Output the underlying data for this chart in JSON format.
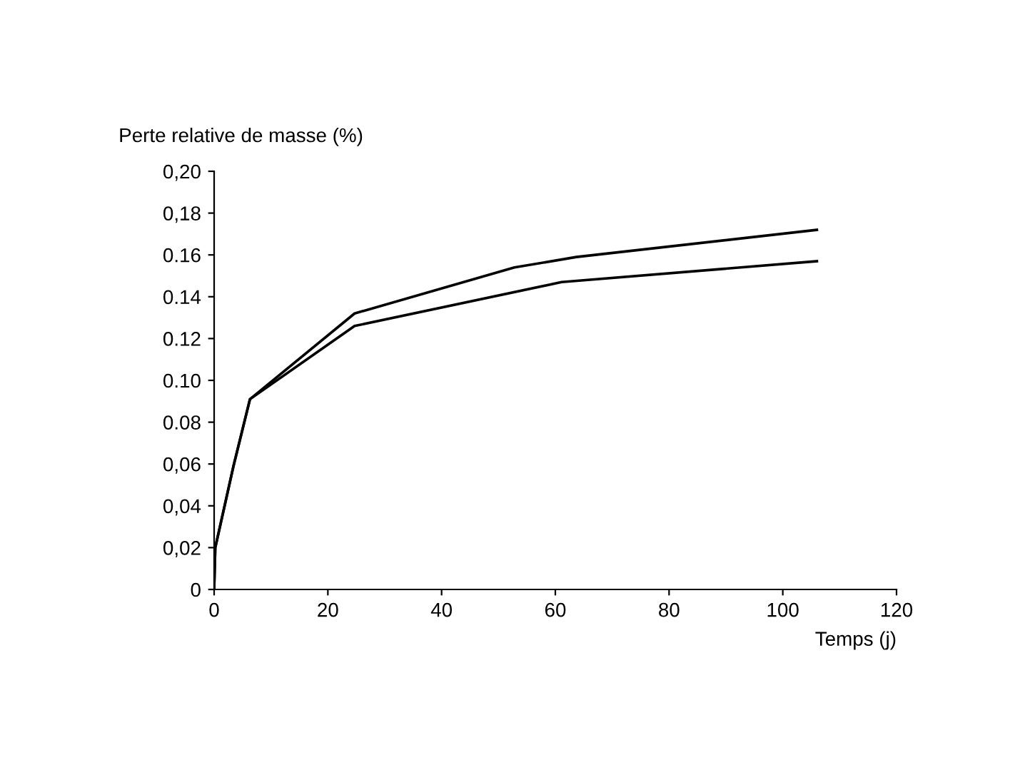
{
  "chart_data": {
    "type": "line",
    "ylabel": "Perte relative de masse (%)",
    "xlabel": "Temps (j)",
    "series": [
      {
        "color": "#000000",
        "x": [
          0,
          0.2,
          3.4,
          6.3,
          24.7,
          52.8,
          63.7,
          106
        ],
        "values": [
          0,
          0.02,
          0.059,
          0.091,
          0.132,
          0.154,
          0.159,
          0.172
        ]
      },
      {
        "color": "#000000",
        "x": [
          0,
          0.2,
          3.4,
          6.3,
          24.7,
          61.1,
          106
        ],
        "values": [
          0,
          0.02,
          0.059,
          0.091,
          0.126,
          0.147,
          0.157
        ]
      }
    ],
    "xlim": [
      0,
      120
    ],
    "xticks": [
      0,
      20,
      40,
      60,
      80,
      100,
      120
    ],
    "ylim": [
      0,
      0.2
    ],
    "yticks": [
      {
        "value": 0,
        "label": "0"
      },
      {
        "value": 0.02,
        "label": "0,02"
      },
      {
        "value": 0.04,
        "label": "0,04"
      },
      {
        "value": 0.06,
        "label": "0,06"
      },
      {
        "value": 0.08,
        "label": "0.08"
      },
      {
        "value": 0.1,
        "label": "0.10"
      },
      {
        "value": 0.12,
        "label": "0.12"
      },
      {
        "value": 0.14,
        "label": "0.14"
      },
      {
        "value": 0.16,
        "label": "0.16"
      },
      {
        "value": 0.18,
        "label": "0,18"
      },
      {
        "value": 0.2,
        "label": "0,20"
      }
    ],
    "grid": false,
    "legend": false,
    "marker": "none",
    "line_style": "solid"
  }
}
